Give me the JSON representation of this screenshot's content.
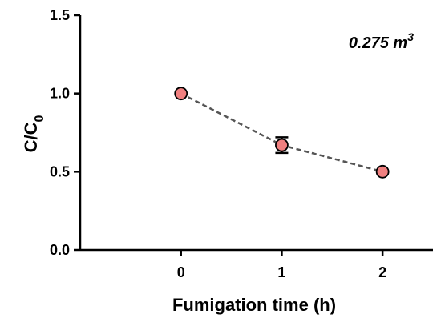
{
  "chart_data": {
    "type": "line",
    "title": "",
    "xlabel": "Fumigation time (h)",
    "ylabel_main": "C/C",
    "ylabel_sub": "0",
    "xlim": [
      -1,
      2.5
    ],
    "ylim": [
      0,
      1.5
    ],
    "x_ticks": [
      0,
      1,
      2
    ],
    "x_tick_labels": [
      "0",
      "1",
      "2"
    ],
    "y_ticks": [
      0,
      0.5,
      1.0,
      1.5
    ],
    "y_tick_labels": [
      "0.0",
      "0.5",
      "1.0",
      "1.5"
    ],
    "grid": false,
    "legend": "none",
    "annotation": {
      "text": "0.275 m",
      "sup": "3",
      "placement": "top-right"
    },
    "series": [
      {
        "x": [
          0,
          1,
          2
        ],
        "y": [
          1.0,
          0.67,
          0.5
        ],
        "yerr": [
          0,
          0.05,
          0
        ],
        "marker_fill": "#f08080",
        "marker_edge": "#000000",
        "line_color": "#555555",
        "line_style": "dashed"
      }
    ]
  }
}
